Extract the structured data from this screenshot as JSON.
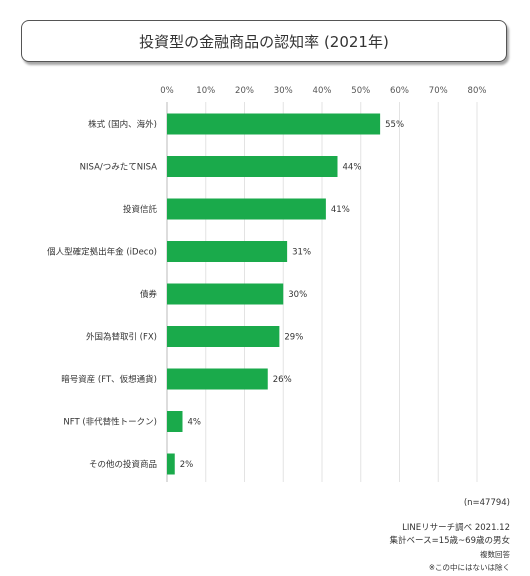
{
  "title": "投資型の金融商品の認知率 (2021年)",
  "chart_data": {
    "type": "bar",
    "orientation": "horizontal",
    "categories": [
      "株式 (国内、海外)",
      "NISA/つみたてNISA",
      "投資信託",
      "個人型確定拠出年金 (iDeco)",
      "債券",
      "外国為替取引 (FX)",
      "暗号資産 (FT、仮想通貨)",
      "NFT (非代替性トークン)",
      "その他の投資商品"
    ],
    "values": [
      55,
      44,
      41,
      31,
      30,
      29,
      26,
      4,
      2
    ],
    "value_labels": [
      "55%",
      "44%",
      "41%",
      "31%",
      "30%",
      "29%",
      "26%",
      "4%",
      "2%"
    ],
    "x_ticks": [
      "0%",
      "10%",
      "20%",
      "30%",
      "40%",
      "50%",
      "60%",
      "70%",
      "80%"
    ],
    "xlim": [
      0,
      80
    ],
    "grid": true,
    "bar_color": "#1aaa4b"
  },
  "footer": {
    "sample": "(n=47794)",
    "source": "LINEリサーチ調べ 2021.12",
    "base": "集計ベース=15歳~69歳の男女",
    "answer": "複数回答",
    "note": "※この中にはないは除く"
  }
}
